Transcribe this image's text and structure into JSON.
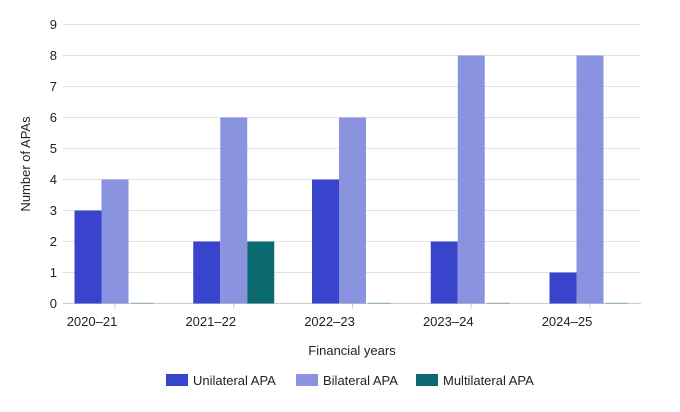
{
  "chart_data": {
    "type": "bar",
    "title": "",
    "xlabel": "Financial years",
    "ylabel": "Number of APAs",
    "ylim": [
      0,
      9
    ],
    "yticks": [
      0,
      1,
      2,
      3,
      4,
      5,
      6,
      7,
      8,
      9
    ],
    "grid": true,
    "legend_placement": "bottom",
    "categories": [
      "2020–21",
      "2021–22",
      "2022–23",
      "2023–24",
      "2024–25"
    ],
    "series": [
      {
        "name": "Unilateral APA",
        "color": "#3944cc",
        "values": [
          3,
          2,
          4,
          2,
          1
        ]
      },
      {
        "name": "Bilateral APA",
        "color": "#8a93e0",
        "values": [
          4,
          6,
          6,
          8,
          8
        ]
      },
      {
        "name": "Multilateral APA",
        "color": "#0b6a70",
        "values": [
          0,
          2,
          0,
          0,
          0
        ]
      }
    ]
  }
}
